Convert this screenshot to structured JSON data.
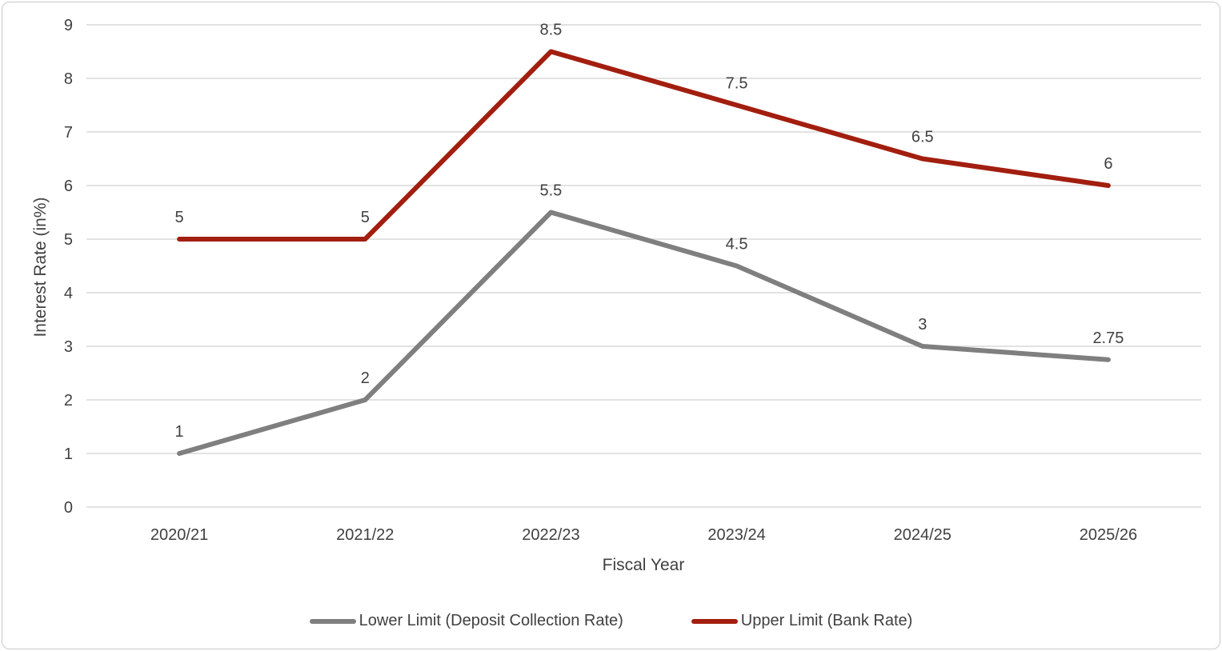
{
  "chart_data": {
    "type": "line",
    "categories": [
      "2020/21",
      "2021/22",
      "2022/23",
      "2023/24",
      "2024/25",
      "2025/26"
    ],
    "series": [
      {
        "name": "Lower Limit (Deposit Collection Rate)",
        "values": [
          1,
          2,
          5.5,
          4.5,
          3,
          2.75
        ],
        "color": "#7F7F7F"
      },
      {
        "name": "Upper Limit (Bank Rate)",
        "values": [
          5,
          5,
          8.5,
          7.5,
          6.5,
          6
        ],
        "color": "#A21E0F"
      }
    ],
    "title": "",
    "xlabel": "Fiscal Year",
    "ylabel": "Interest Rate (in%)",
    "ylim": [
      0,
      9
    ],
    "ytick_step": 1,
    "yticks": [
      "0",
      "1",
      "2",
      "3",
      "4",
      "5",
      "6",
      "7",
      "8",
      "9"
    ],
    "grid": true,
    "data_labels": true,
    "legend_position": "bottom"
  },
  "styles": {
    "grid_color": "#D9D9D9",
    "text_color": "#404040",
    "border_color": "#C9C9C9",
    "background": "#FFFFFF"
  }
}
